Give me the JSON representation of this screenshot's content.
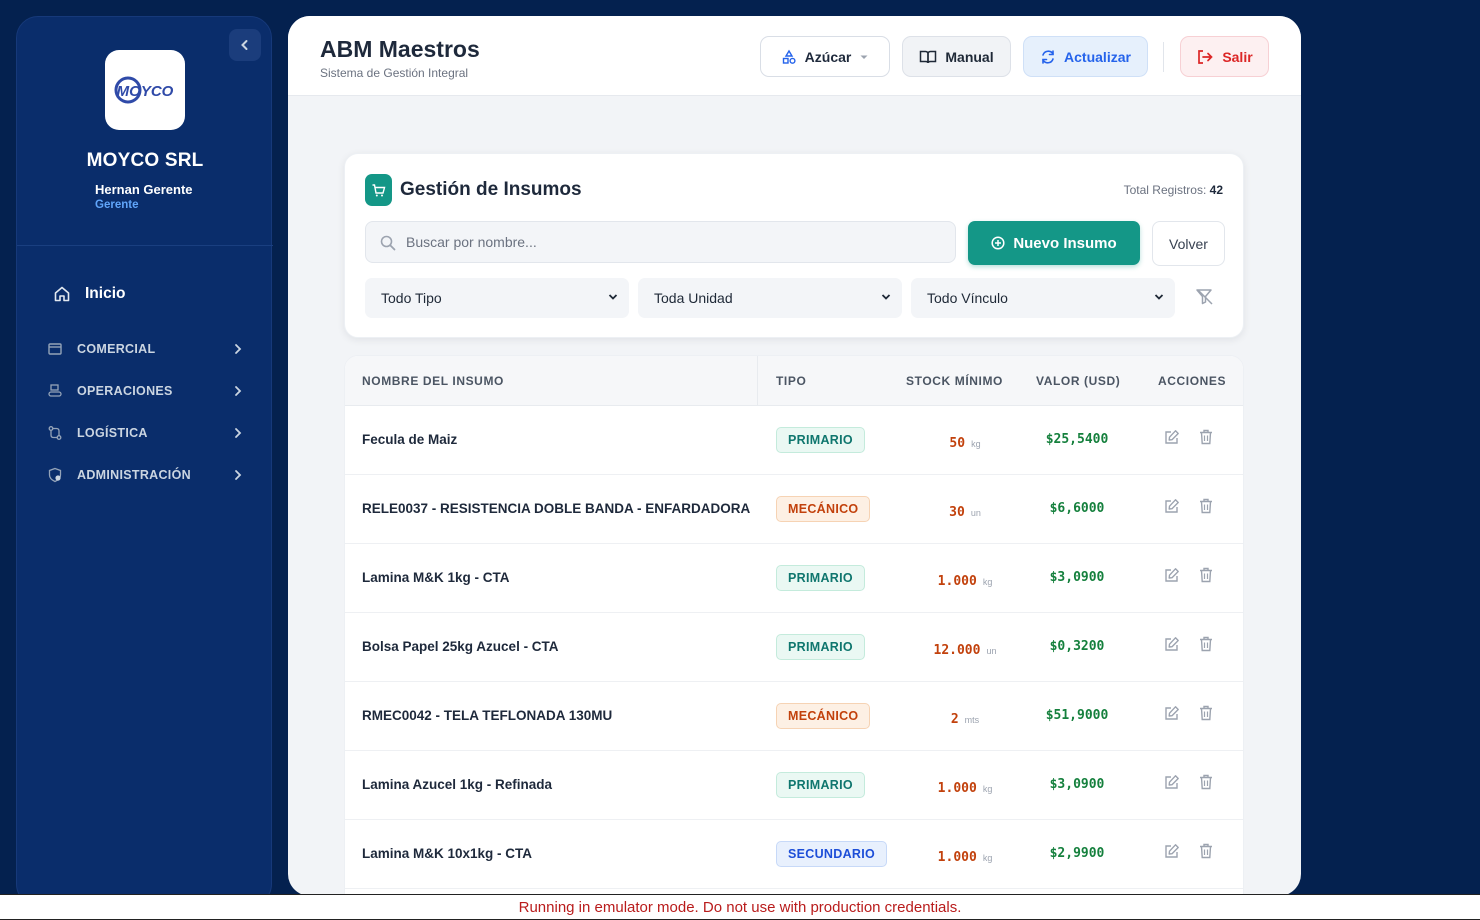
{
  "sidebar": {
    "logo_text": "MOYCO",
    "company": "MOYCO SRL",
    "user_name": "Hernan Gerente",
    "user_role": "Gerente",
    "home_label": "Inicio",
    "items": [
      {
        "label": "COMERCIAL",
        "icon": "store-icon"
      },
      {
        "label": "OPERACIONES",
        "icon": "conveyor-icon"
      },
      {
        "label": "LOGÍSTICA",
        "icon": "route-icon"
      },
      {
        "label": "ADMINISTRACIÓN",
        "icon": "shield-gear-icon"
      }
    ]
  },
  "header": {
    "title": "ABM Maestros",
    "subtitle": "Sistema de Gestión Integral",
    "product_select": "Azúcar",
    "manual_label": "Manual",
    "refresh_label": "Actualizar",
    "logout_label": "Salir"
  },
  "card": {
    "title": "Gestión de Insumos",
    "total_label": "Total Registros:",
    "total_value": "42",
    "search_placeholder": "Buscar por nombre...",
    "new_button": "Nuevo Insumo",
    "back_button": "Volver",
    "filters": [
      "Todo Tipo",
      "Toda Unidad",
      "Todo Vínculo"
    ]
  },
  "table": {
    "headers": [
      "NOMBRE DEL INSUMO",
      "TIPO",
      "STOCK MÍNIMO",
      "VALOR (USD)",
      "ACCIONES"
    ],
    "rows": [
      {
        "name": "Fecula de Maiz",
        "type": "PRIMARIO",
        "stock": "50",
        "unit": "kg",
        "value": "$25,5400"
      },
      {
        "name": "RELE0037 - RESISTENCIA DOBLE BANDA - ENFARDADORA",
        "type": "MECÁNICO",
        "stock": "30",
        "unit": "un",
        "value": "$6,6000"
      },
      {
        "name": "Lamina M&K 1kg - CTA",
        "type": "PRIMARIO",
        "stock": "1.000",
        "unit": "kg",
        "value": "$3,0900"
      },
      {
        "name": "Bolsa Papel 25kg Azucel - CTA",
        "type": "PRIMARIO",
        "stock": "12.000",
        "unit": "un",
        "value": "$0,3200"
      },
      {
        "name": "RMEC0042 - TELA TEFLONADA 130MU",
        "type": "MECÁNICO",
        "stock": "2",
        "unit": "mts",
        "value": "$51,9000"
      },
      {
        "name": "Lamina Azucel 1kg - Refinada",
        "type": "PRIMARIO",
        "stock": "1.000",
        "unit": "kg",
        "value": "$3,0900"
      },
      {
        "name": "Lamina M&K 10x1kg - CTA",
        "type": "SECUNDARIO",
        "stock": "1.000",
        "unit": "kg",
        "value": "$2,9900"
      }
    ]
  },
  "footer": {
    "message": "Running in emulator mode. Do not use with production credentials."
  },
  "colors": {
    "background": "#04214f",
    "sidebar": "#0a2d6b",
    "accent_teal": "#149787",
    "primary_blue": "#2563eb",
    "danger": "#dc2626",
    "value_green": "#15803d",
    "stock_orange": "#c2410c"
  }
}
